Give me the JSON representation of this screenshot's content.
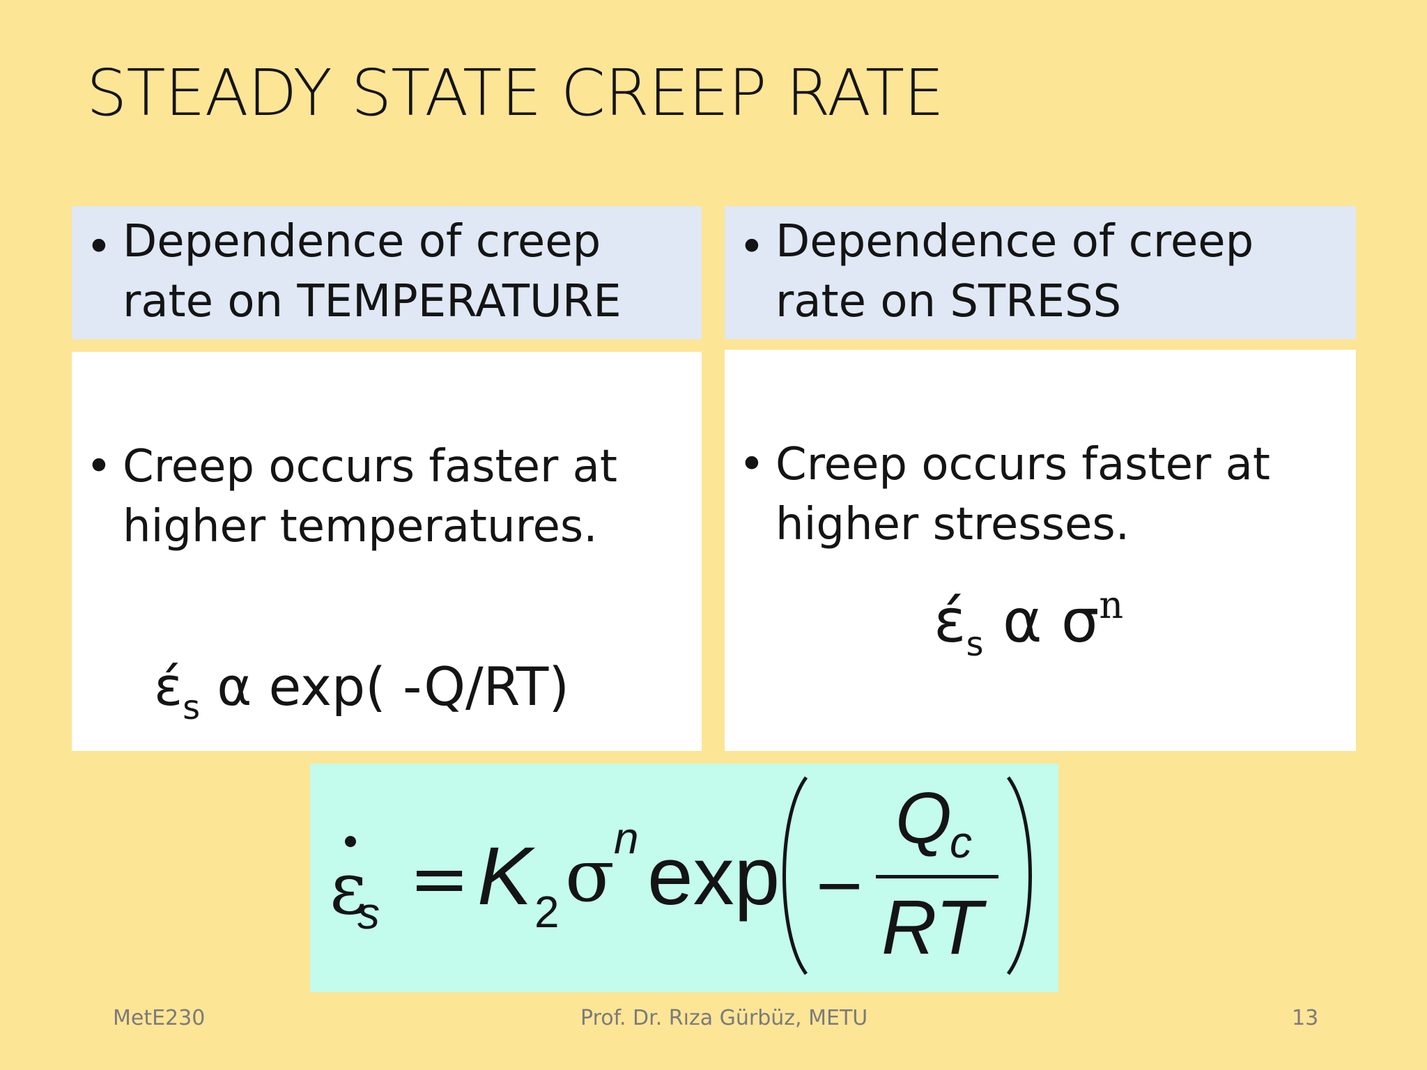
{
  "slide": {
    "title": "STEADY STATE CREEP RATE",
    "left": {
      "heading": "Dependence of creep rate on TEMPERATURE",
      "point": "Creep occurs faster at higher temperatures.",
      "formula": {
        "symbol": "έ",
        "sub": "s",
        "relation": "α exp( -Q/RT)"
      }
    },
    "right": {
      "heading": "Dependence of creep rate on STRESS",
      "point": "Creep occurs faster at higher stresses.",
      "formula": {
        "symbol": "έ",
        "sub": "s",
        "relation": "α σ",
        "sup": "n"
      }
    },
    "equation": {
      "lhs_symbol": "ε",
      "lhs_sub": "s",
      "equals": "=",
      "k": "K",
      "k_sub": "2",
      "sigma": "σ",
      "sigma_sup": "n",
      "exp": "exp",
      "minus": "−",
      "numerator": "Q",
      "numerator_sub": "c",
      "denominator": "RT"
    },
    "bullet_symbol": "•",
    "footer": {
      "course": "MetE230",
      "author": "Prof. Dr. Rıza Gürbüz, METU",
      "page": "13"
    }
  },
  "colors": {
    "background": "#fde596",
    "heading_box": "#dfe8f4",
    "content_box": "#ffffff",
    "equation_box": "#c3fbed",
    "text": "#141414",
    "footer_text": "#7b7b7b"
  }
}
